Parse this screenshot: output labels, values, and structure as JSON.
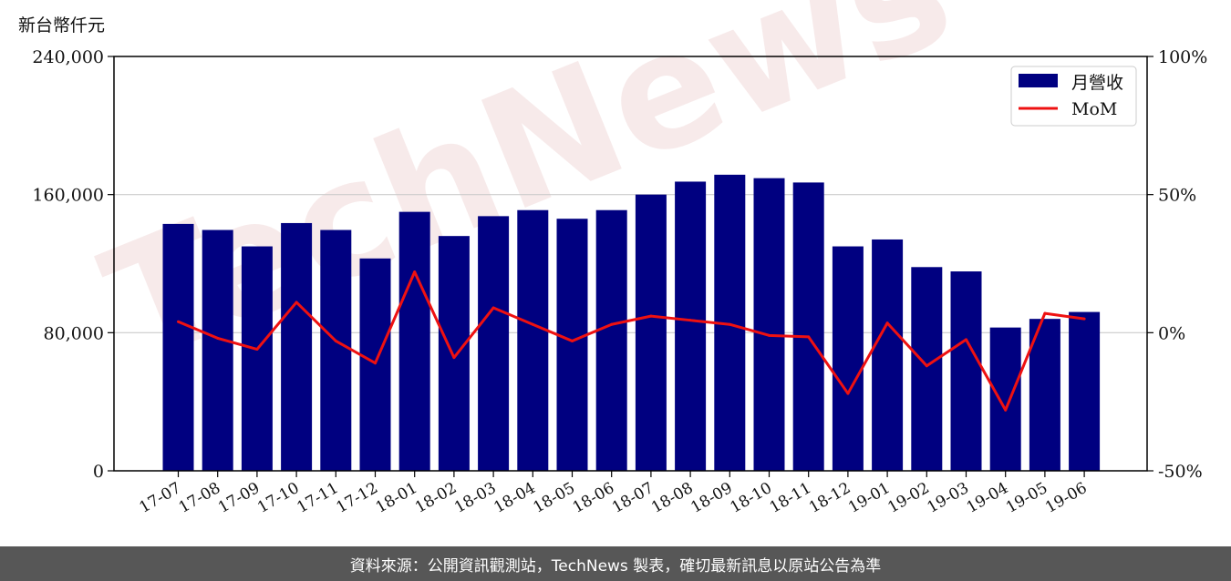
{
  "chart_data": {
    "type": "bar",
    "y_unit_label": "新台幣仟元",
    "categories": [
      "17-07",
      "17-08",
      "17-09",
      "17-10",
      "17-11",
      "17-12",
      "18-01",
      "18-02",
      "18-03",
      "18-04",
      "18-05",
      "18-06",
      "18-07",
      "18-08",
      "18-09",
      "18-10",
      "18-11",
      "18-12",
      "19-01",
      "19-02",
      "19-03",
      "19-04",
      "19-05",
      "19-06"
    ],
    "series": [
      {
        "name": "月營收",
        "type": "bar",
        "axis": "left",
        "color": "#000080",
        "values": [
          143000,
          139500,
          130000,
          143500,
          139500,
          123000,
          150000,
          136000,
          147500,
          151000,
          146000,
          151000,
          160000,
          167500,
          171500,
          169500,
          167000,
          130000,
          134000,
          118000,
          115500,
          83000,
          88000,
          92000
        ]
      },
      {
        "name": "MoM",
        "type": "line",
        "axis": "right",
        "color": "#ee1111",
        "values": [
          4,
          -2,
          -6,
          11,
          -3,
          -11,
          22,
          -9,
          9,
          3,
          -3,
          3,
          6,
          4.5,
          3,
          -1,
          -1.5,
          -22,
          3.5,
          -12,
          -2.5,
          -28,
          7,
          5
        ]
      }
    ],
    "ylim": [
      0,
      240000
    ],
    "yticks": [
      "0",
      "80,000",
      "160,000",
      "240,000"
    ],
    "y2lim": [
      -50,
      100
    ],
    "y2ticks": [
      "-50%",
      "0%",
      "50%",
      "100%"
    ],
    "grid": "horizontal",
    "legend_position": "top-right",
    "watermark": "TechNews"
  },
  "footer": {
    "text": "資料來源：公開資訊觀測站，TechNews 製表，確切最新訊息以原站公告為準"
  }
}
